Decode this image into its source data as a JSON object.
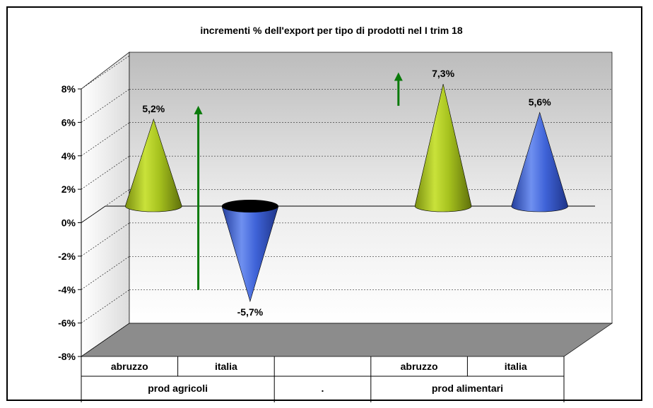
{
  "chart_data": {
    "type": "bar",
    "shape": "cone",
    "title": "incrementi % dell'export per tipo di prodotti nel I trim 18",
    "groups": [
      "prod agricoli",
      ".",
      "prod alimentari"
    ],
    "categories": [
      "abruzzo",
      "italia",
      "",
      "abruzzo",
      "italia"
    ],
    "values": [
      5.2,
      -5.7,
      null,
      7.3,
      5.6
    ],
    "data_labels": [
      "5,2%",
      "-5,7%",
      "",
      "7,3%",
      "5,6%"
    ],
    "bar_colors": [
      "#a6c21e",
      "#3f63d8",
      null,
      "#a6c21e",
      "#3f63d8"
    ],
    "ylim": [
      -8,
      8
    ],
    "yticks": [
      -8,
      -6,
      -4,
      -2,
      0,
      2,
      4,
      6,
      8
    ],
    "ytick_labels": [
      "-8%",
      "-6%",
      "-4%",
      "-2%",
      "0%",
      "2%",
      "4%",
      "6%",
      "8%"
    ],
    "grid": true,
    "legend": "none",
    "arrows": [
      {
        "from_category": 1,
        "y_from": -5,
        "y_to": 6,
        "color": "#0a7a0a"
      },
      {
        "from_category": 3,
        "y_from": 6,
        "y_to": 8,
        "color": "#0a7a0a"
      }
    ],
    "colors": {
      "back_wall_top": "#bcbcbc",
      "back_wall_bottom": "#ffffff",
      "floor": "#8c8c8c",
      "grid": "#000000",
      "arrow": "#0a7a0a",
      "positive_bar": "#a6c21e",
      "negative_bar": "#3f63d8"
    }
  }
}
